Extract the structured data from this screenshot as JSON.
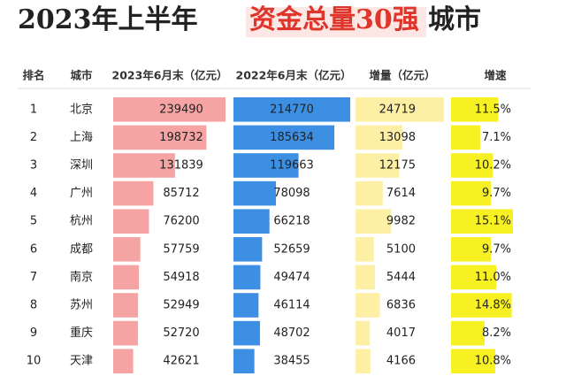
{
  "header": {
    "title_parts": [
      "2023年上半年",
      "资金总量30强",
      "城市"
    ]
  },
  "table": {
    "columns": [
      "排名",
      "城市",
      "2023年6月末（亿元）",
      "2022年6月末（亿元）",
      "增量（亿元）",
      "增速"
    ],
    "bar_colors": [
      "#f5a3a3",
      "#3d8fe3",
      "#fdf0a4",
      "#f7f123"
    ],
    "rows": [
      [
        1,
        "北京",
        239490,
        214770,
        24719,
        11.5
      ],
      [
        2,
        "上海",
        198732,
        185634,
        13098,
        7.1
      ],
      [
        3,
        "深圳",
        131839,
        119663,
        12175,
        10.2
      ],
      [
        4,
        "广州",
        85712,
        78098,
        7614,
        9.7
      ],
      [
        5,
        "杭州",
        76200,
        66218,
        9982,
        15.1
      ],
      [
        6,
        "成都",
        57759,
        52659,
        5100,
        9.7
      ],
      [
        7,
        "南京",
        54918,
        49474,
        5444,
        11.0
      ],
      [
        8,
        "苏州",
        52949,
        46114,
        6836,
        14.8
      ],
      [
        9,
        "重庆",
        52720,
        48702,
        4017,
        8.2
      ],
      [
        10,
        "天津",
        42621,
        38455,
        4166,
        10.8
      ]
    ],
    "growth_labels": [
      "11.5%",
      "7.1%",
      "10.2%",
      "9.7%",
      "15.1%",
      "9.7%",
      "11.0%",
      "14.8%",
      "8.2%",
      "10.8%"
    ]
  }
}
